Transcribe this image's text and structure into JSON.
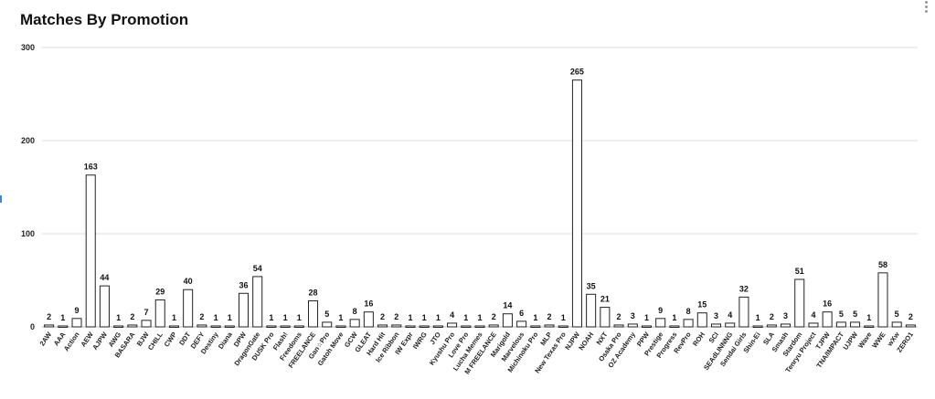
{
  "window": {
    "menu_icon": "kebab-menu-icon",
    "accent": "#3a86d6"
  },
  "chart_data": {
    "type": "bar",
    "title": "Matches By Promotion",
    "xlabel": "",
    "ylabel": "",
    "ylim": [
      0,
      300
    ],
    "yticks": [
      0,
      100,
      200,
      300
    ],
    "grid": true,
    "bar_fill": "#ffffff",
    "bar_stroke": "#222222",
    "categories": [
      "2AW",
      "AAA",
      "Action",
      "AEW",
      "AJPW",
      "AWG",
      "BASARA",
      "BJW",
      "CHILL",
      "CWP",
      "DDT",
      "DEFY",
      "Destiny",
      "Diana",
      "DPW",
      "DragonGate",
      "DUSK Pro",
      "Flash!",
      "Freedoms",
      "FREELANCE",
      "Gan☆Pro",
      "Gatoh Move",
      "GCW",
      "GLEAT",
      "Hard Hit",
      "Ice Ribbon",
      "IW Expr",
      "IWRG",
      "JTO",
      "Kyushu Pro",
      "Love Pro",
      "Lucha Memes",
      "M FREELANCE",
      "Marigold",
      "Marvelous",
      "Michinoku Pro",
      "MLP",
      "New Texas Pro",
      "NJPW",
      "NOAH",
      "NXT",
      "Osaka Pro",
      "OZ Academy",
      "PPW",
      "Prestige",
      "Progress",
      "RevPro",
      "ROH",
      "SCI",
      "SEAdLINNNG",
      "Sendai Girls",
      "Shin-Ei",
      "SLA",
      "Smash",
      "Stardom",
      "Tenryu Project",
      "TJPW",
      "TNA/IMPACT",
      "UJPW",
      "Wave",
      "WWE",
      "wXw",
      "ZERO1"
    ],
    "values": [
      2,
      1,
      9,
      163,
      44,
      1,
      2,
      7,
      29,
      1,
      40,
      2,
      1,
      1,
      36,
      54,
      1,
      1,
      1,
      28,
      5,
      1,
      8,
      16,
      2,
      2,
      1,
      1,
      1,
      4,
      1,
      1,
      2,
      14,
      6,
      1,
      2,
      1,
      265,
      35,
      21,
      2,
      3,
      1,
      9,
      1,
      8,
      15,
      3,
      4,
      32,
      1,
      2,
      3,
      51,
      4,
      16,
      5,
      5,
      1,
      58,
      5,
      2
    ]
  }
}
